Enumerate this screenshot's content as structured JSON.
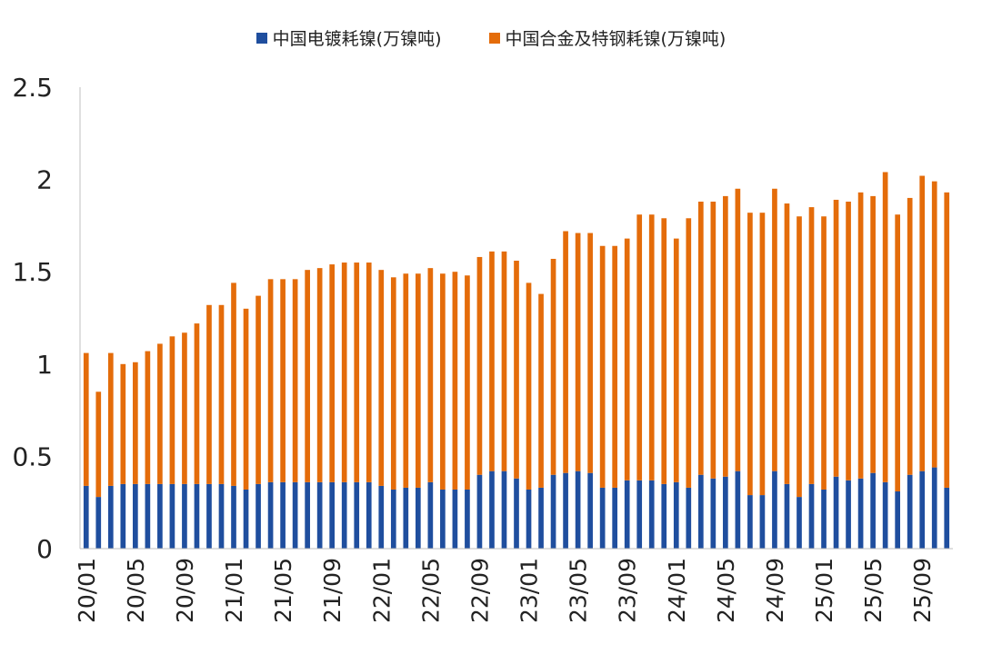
{
  "chart_data": {
    "type": "bar",
    "stacked": true,
    "title": "",
    "xlabel": "",
    "ylabel": "",
    "ylim": [
      0,
      2.5
    ],
    "yticks": [
      "0",
      "0.5",
      "1",
      "1.5",
      "2",
      "2.5"
    ],
    "grid": false,
    "legend_position": "top-center",
    "tick_labels": [
      "20/01",
      "20/05",
      "20/09",
      "21/01",
      "21/05",
      "21/09",
      "22/01",
      "22/05",
      "22/09",
      "23/01",
      "23/05",
      "23/09",
      "24/01",
      "24/05",
      "24/09",
      "25/01",
      "25/05",
      "25/09"
    ],
    "categories": [
      "20/01",
      "20/02",
      "20/03",
      "20/04",
      "20/05",
      "20/06",
      "20/07",
      "20/08",
      "20/09",
      "20/10",
      "20/11",
      "20/12",
      "21/01",
      "21/02",
      "21/03",
      "21/04",
      "21/05",
      "21/06",
      "21/07",
      "21/08",
      "21/09",
      "21/10",
      "21/11",
      "21/12",
      "22/01",
      "22/02",
      "22/03",
      "22/04",
      "22/05",
      "22/06",
      "22/07",
      "22/08",
      "22/09",
      "22/10",
      "22/11",
      "22/12",
      "23/01",
      "23/02",
      "23/03",
      "23/04",
      "23/05",
      "23/06",
      "23/07",
      "23/08",
      "23/09",
      "23/10",
      "23/11",
      "23/12",
      "24/01",
      "24/02",
      "24/03",
      "24/04",
      "24/05",
      "24/06",
      "24/07",
      "24/08",
      "24/09",
      "24/10",
      "24/11",
      "24/12",
      "25/01",
      "25/02",
      "25/03",
      "25/04",
      "25/05",
      "25/06",
      "25/07",
      "25/08",
      "25/09",
      "25/10",
      "25/11"
    ],
    "series": [
      {
        "name": "中国电镀耗镍(万镍吨)",
        "color": "#1F4E9E",
        "values": [
          0.34,
          0.28,
          0.34,
          0.35,
          0.35,
          0.35,
          0.35,
          0.35,
          0.35,
          0.35,
          0.35,
          0.35,
          0.34,
          0.32,
          0.35,
          0.36,
          0.36,
          0.36,
          0.36,
          0.36,
          0.36,
          0.36,
          0.36,
          0.36,
          0.34,
          0.32,
          0.33,
          0.33,
          0.36,
          0.32,
          0.32,
          0.32,
          0.4,
          0.42,
          0.42,
          0.38,
          0.32,
          0.33,
          0.4,
          0.41,
          0.42,
          0.41,
          0.33,
          0.33,
          0.37,
          0.37,
          0.37,
          0.35,
          0.36,
          0.33,
          0.4,
          0.38,
          0.39,
          0.42,
          0.29,
          0.29,
          0.42,
          0.35,
          0.28,
          0.35,
          0.32,
          0.39,
          0.37,
          0.38,
          0.41,
          0.36,
          0.31,
          0.4,
          0.42,
          0.44,
          0.33
        ]
      },
      {
        "name": "中国合金及特钢耗镍(万镍吨)",
        "color": "#E46C0A",
        "values": [
          0.72,
          0.57,
          0.72,
          0.65,
          0.66,
          0.72,
          0.76,
          0.8,
          0.82,
          0.87,
          0.97,
          0.97,
          1.1,
          0.98,
          1.02,
          1.1,
          1.1,
          1.1,
          1.15,
          1.16,
          1.18,
          1.19,
          1.19,
          1.19,
          1.17,
          1.15,
          1.16,
          1.16,
          1.16,
          1.17,
          1.18,
          1.16,
          1.18,
          1.19,
          1.19,
          1.18,
          1.12,
          1.05,
          1.17,
          1.31,
          1.29,
          1.3,
          1.31,
          1.31,
          1.31,
          1.44,
          1.44,
          1.44,
          1.32,
          1.46,
          1.48,
          1.5,
          1.52,
          1.53,
          1.53,
          1.53,
          1.53,
          1.52,
          1.52,
          1.5,
          1.48,
          1.5,
          1.51,
          1.55,
          1.5,
          1.68,
          1.5,
          1.5,
          1.6,
          1.55,
          1.6
        ]
      }
    ]
  }
}
